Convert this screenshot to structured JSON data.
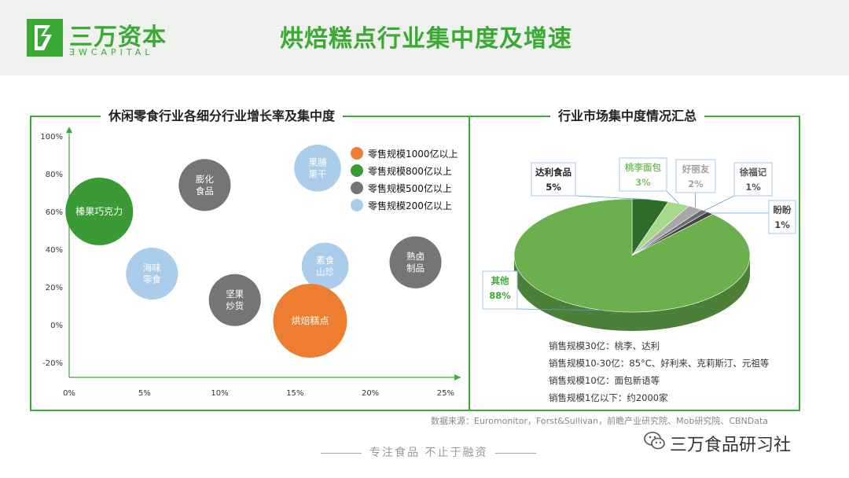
{
  "header": {
    "logo_cn": "三万资本",
    "logo_en": "ƎWCAPITAL",
    "title": "烘焙糕点行业集中度及增速"
  },
  "chart_data": [
    {
      "type": "scatter",
      "title": "休闲零食行业各细分行业增长率及集中度",
      "x_ticks": [
        "0%",
        "5%",
        "10%",
        "15%",
        "20%",
        "25%"
      ],
      "y_ticks": [
        "100%",
        "80%",
        "60%",
        "40%",
        "20%",
        "0%",
        "-20%"
      ],
      "xlim": [
        0,
        26
      ],
      "ylim": [
        -28,
        105
      ],
      "legend": {
        "position": "top-right",
        "entries": [
          {
            "label": "零售规模1000亿以上",
            "color": "#ed7d31"
          },
          {
            "label": "零售规模800亿以上",
            "color": "#3a9a35"
          },
          {
            "label": "零售规模500亿以上",
            "color": "#757575"
          },
          {
            "label": "零售规模200亿以上",
            "color": "#a9cdea"
          }
        ]
      },
      "bubbles": [
        {
          "label": "榛果巧克力",
          "x": 2,
          "y": 60,
          "size": 4,
          "color": "#3a9a35"
        },
        {
          "label": "海味\n零食",
          "x": 5.5,
          "y": 27,
          "size": 2,
          "color": "#a9cdea"
        },
        {
          "label": "膨化\n食品",
          "x": 9,
          "y": 74,
          "size": 2,
          "color": "#757575"
        },
        {
          "label": "坚果\n炒货",
          "x": 11,
          "y": 13,
          "size": 2,
          "color": "#757575"
        },
        {
          "label": "果脯\n果干",
          "x": 16.5,
          "y": 83,
          "size": 1.5,
          "color": "#a9cdea"
        },
        {
          "label": "素食\n山珍",
          "x": 17,
          "y": 31,
          "size": 1.5,
          "color": "#a9cdea"
        },
        {
          "label": "烘焙糕点",
          "x": 16,
          "y": 2,
          "size": 5,
          "color": "#ed7d31"
        },
        {
          "label": "熟卤\n制品",
          "x": 23,
          "y": 33,
          "size": 2,
          "color": "#757575"
        }
      ]
    },
    {
      "type": "pie",
      "title": "行业市场集中度情况汇总",
      "slices": [
        {
          "label": "达利食品",
          "value": 5,
          "display": "5%",
          "color": "#2e6e2b",
          "label_color": "#222"
        },
        {
          "label": "桃李面包",
          "value": 3,
          "display": "3%",
          "color": "#a8d98b",
          "label_color": "#7ec267"
        },
        {
          "label": "好丽友",
          "value": 2,
          "display": "2%",
          "color": "#a8a8a8",
          "label_color": "#a0a0a0"
        },
        {
          "label": "徐福记",
          "value": 1,
          "display": "1%",
          "color": "#6e6e6e",
          "label_color": "#555"
        },
        {
          "label": "盼盼",
          "value": 1,
          "display": "1%",
          "color": "#444444",
          "label_color": "#444"
        },
        {
          "label": "其他",
          "value": 88,
          "display": "88%",
          "color": "#6ab04c",
          "label_color": "#3aaa35"
        }
      ],
      "notes": [
        "销售规模30亿：桃李、达利",
        "销售规模10-30亿：85°C、好利来、克莉斯汀、元祖等",
        "销售规模10亿：面包新语等",
        "销售规模1亿以下：约2000家"
      ]
    }
  ],
  "footer": {
    "source": "数据来源：Euromonitor，Forst&Sullivan，前瞻产业研究院、Mob研究院、CBNData",
    "slogan": "专注食品 不止于融资",
    "wechat_name": "三万食品研习社"
  }
}
